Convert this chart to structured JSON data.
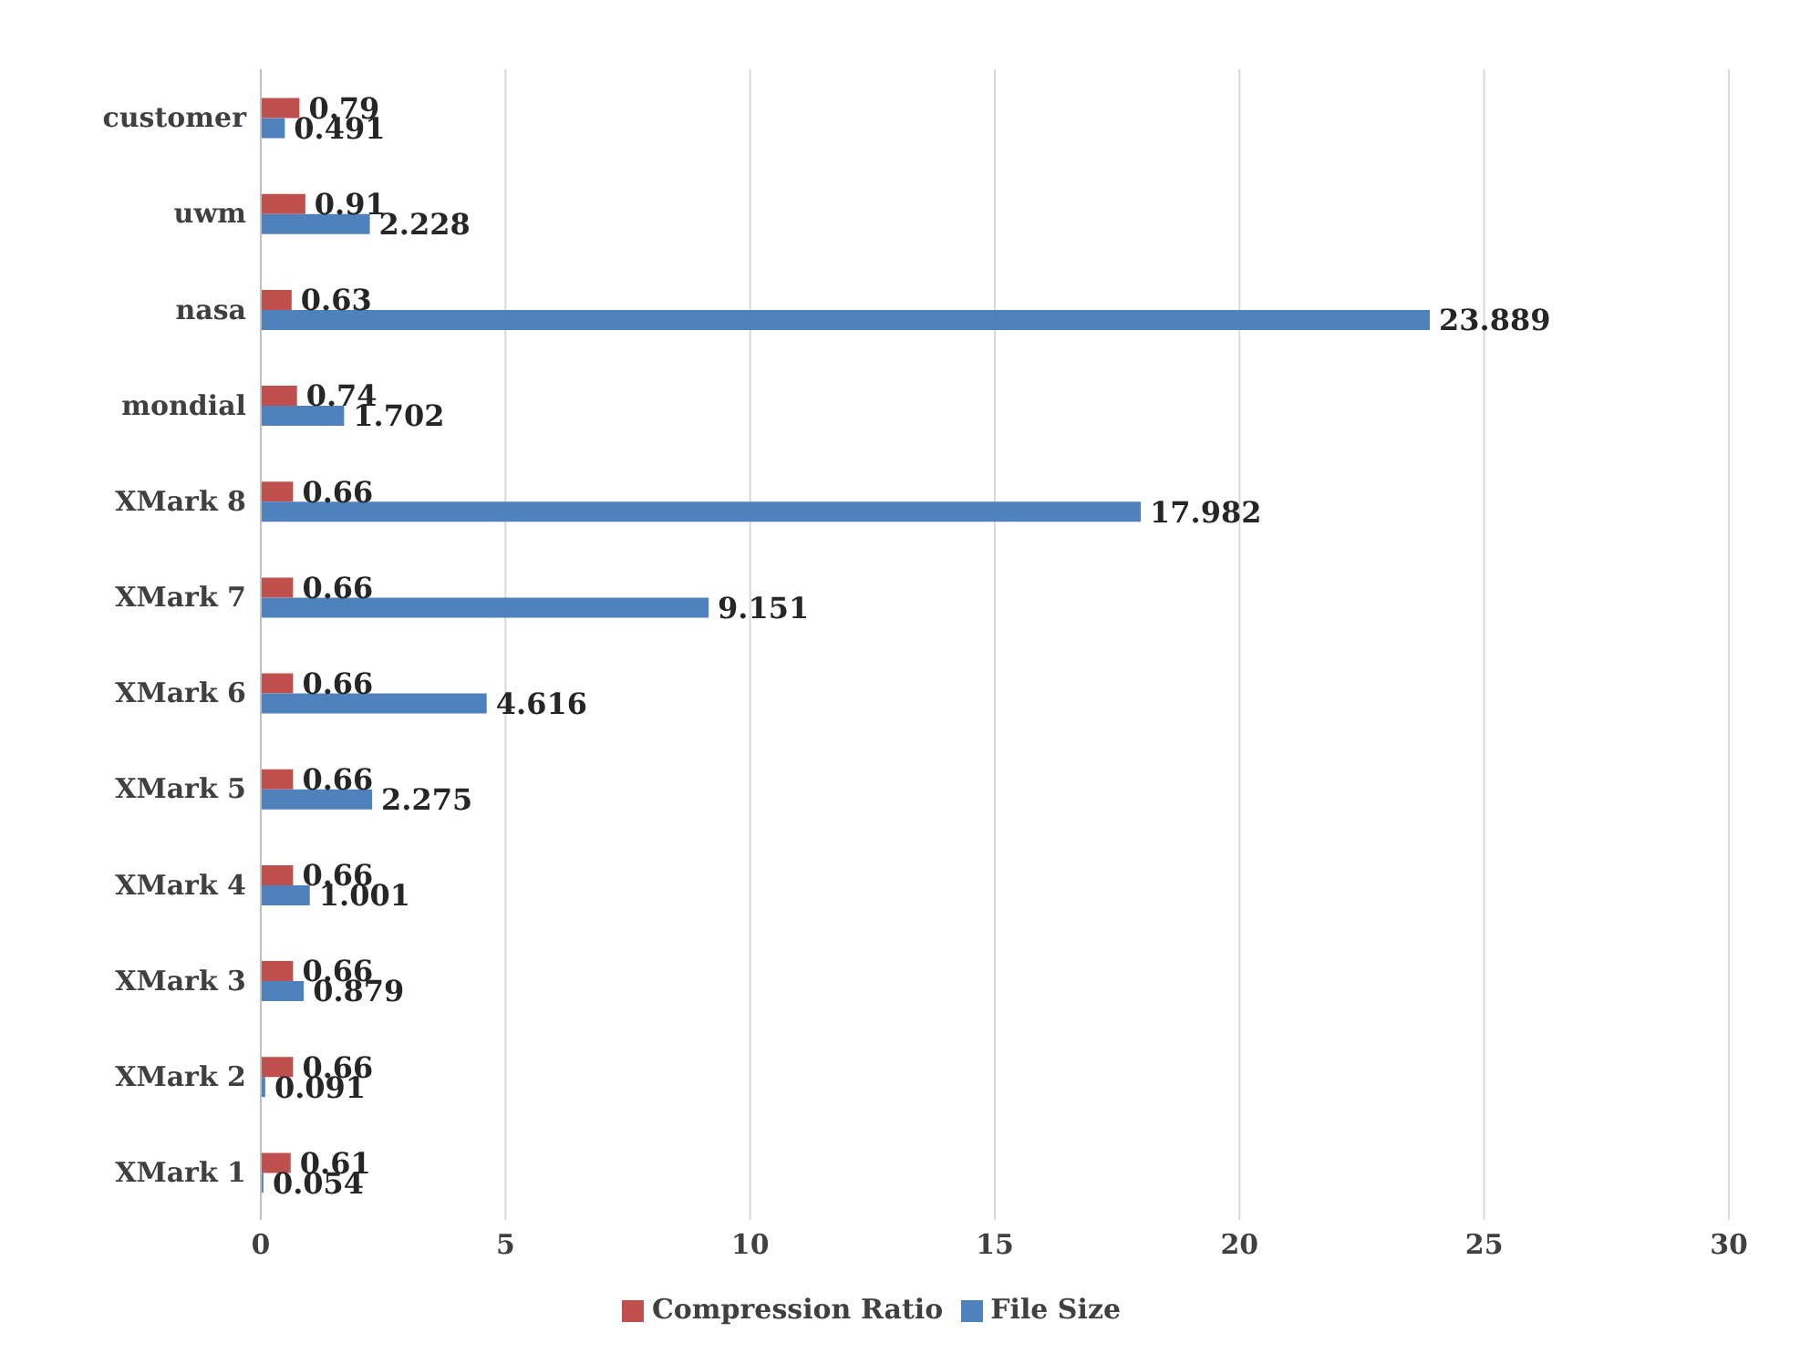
{
  "chart_data": {
    "type": "bar",
    "orientation": "horizontal",
    "categories": [
      "customer",
      "uwm",
      "nasa",
      "mondial",
      "XMark 8",
      "XMark 7",
      "XMark 6",
      "XMark 5",
      "XMark 4",
      "XMark 3",
      "XMark 2",
      "XMark 1"
    ],
    "series": [
      {
        "name": "Compression Ratio",
        "color": "#c0504d",
        "values": [
          0.79,
          0.91,
          0.63,
          0.74,
          0.66,
          0.66,
          0.66,
          0.66,
          0.66,
          0.66,
          0.66,
          0.61
        ]
      },
      {
        "name": "File Size",
        "color": "#4f81bd",
        "values": [
          0.491,
          2.228,
          23.889,
          1.702,
          17.982,
          9.151,
          4.616,
          2.275,
          1.001,
          0.879,
          0.091,
          0.054
        ]
      }
    ],
    "xlim": [
      0,
      30
    ],
    "xticks": [
      0,
      5,
      10,
      15,
      20,
      25,
      30
    ],
    "grid": "x",
    "legend": "bottom",
    "data_labels": true
  }
}
